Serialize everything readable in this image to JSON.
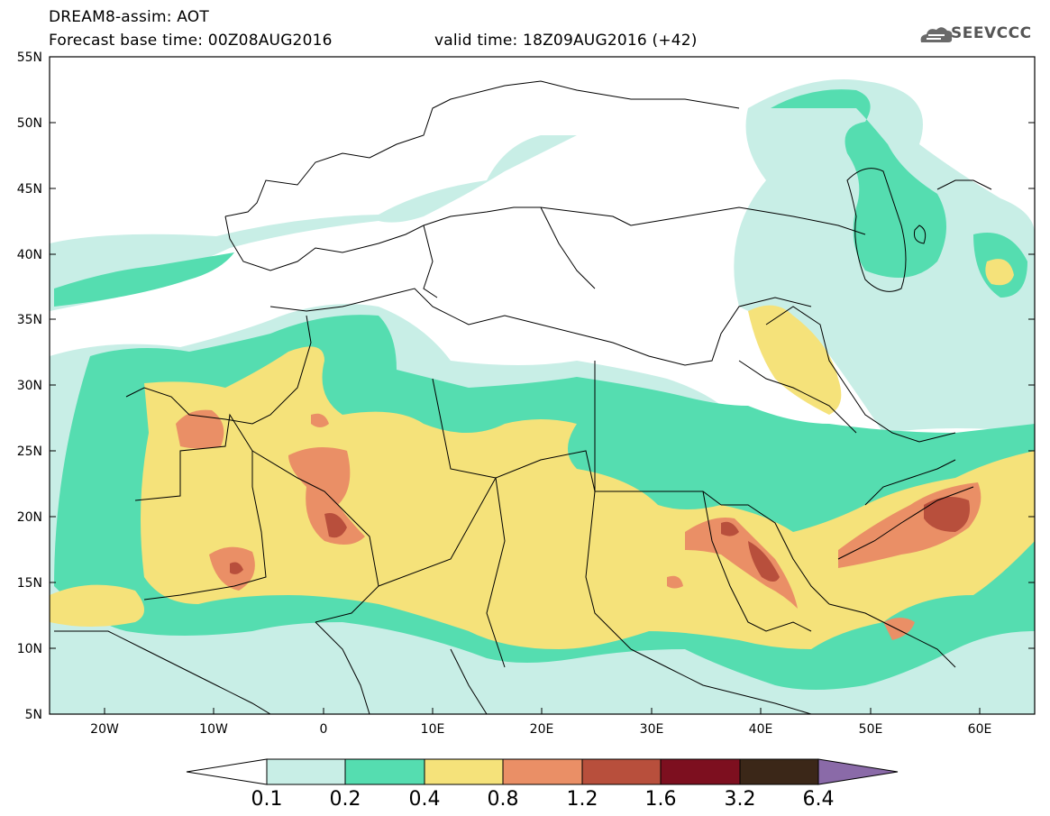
{
  "header": {
    "title_line1": "DREAM8-assim: AOT",
    "title_line2a": "Forecast base time: 00Z08AUG2016",
    "title_line2b": "valid time: 18Z09AUG2016 (+42)",
    "logo_text": "SEEVCCC"
  },
  "axes": {
    "lat_labels": [
      "55N",
      "50N",
      "45N",
      "40N",
      "35N",
      "30N",
      "25N",
      "20N",
      "15N",
      "10N",
      "5N"
    ],
    "lon_labels": [
      "20W",
      "10W",
      "0",
      "10E",
      "20E",
      "30E",
      "40E",
      "50E",
      "60E"
    ]
  },
  "colorbar": {
    "labels": [
      "0.1",
      "0.2",
      "0.4",
      "0.8",
      "1.2",
      "1.6",
      "3.2",
      "6.4"
    ],
    "colors": [
      "#ffffff",
      "#c8eee6",
      "#55ddb0",
      "#f5e27a",
      "#ea8f66",
      "#b84f3c",
      "#7d0f1f",
      "#3b2718",
      "#8a6aa8"
    ]
  },
  "map": {
    "lat_range": [
      5,
      55
    ],
    "lon_range": [
      -25,
      65
    ],
    "projection": "equirectangular"
  }
}
